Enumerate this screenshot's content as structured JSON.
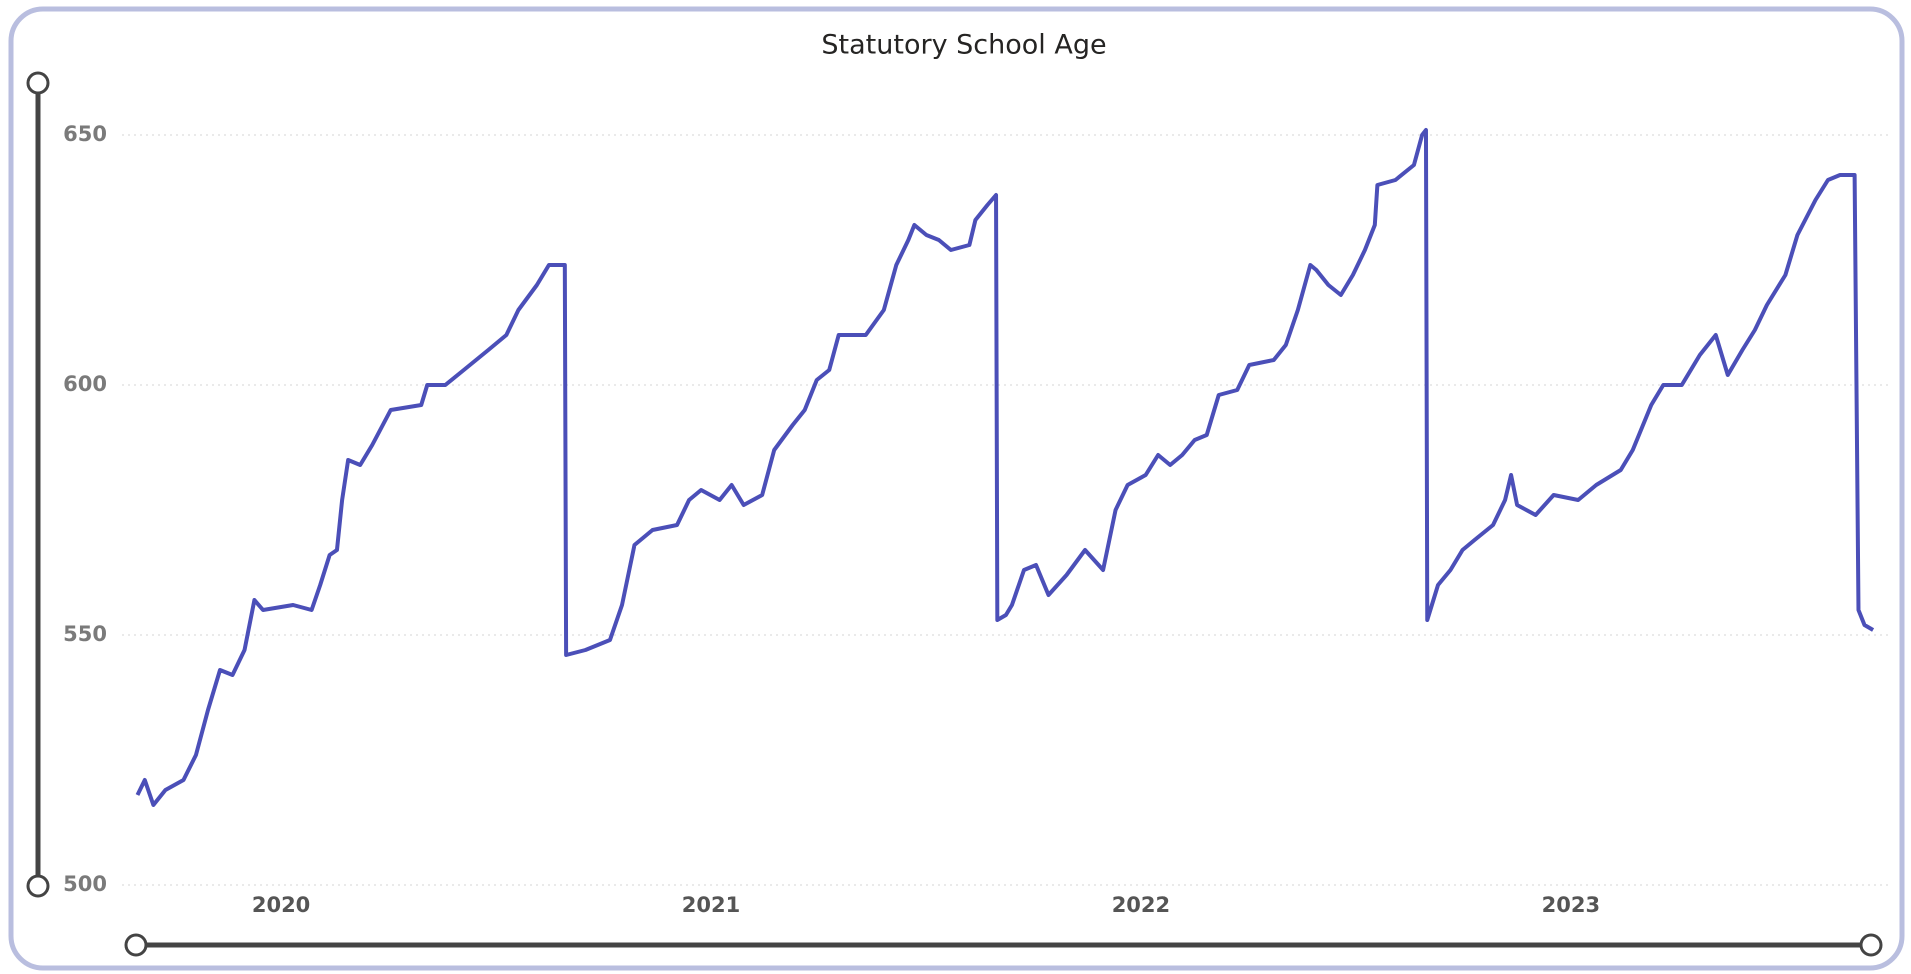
{
  "chart_data": {
    "type": "line",
    "title": "Statutory School Age",
    "color": "#4b4fb8",
    "grid": true,
    "xlim": [
      2019.63,
      2023.74
    ],
    "xticks": [
      2020,
      2021,
      2022,
      2023
    ],
    "ylim": [
      500,
      650
    ],
    "yticks": [
      500,
      550,
      600,
      650
    ],
    "x": [
      2019.666,
      2019.683,
      2019.703,
      2019.731,
      2019.773,
      2019.802,
      2019.83,
      2019.858,
      2019.887,
      2019.915,
      2019.938,
      2019.958,
      2020.028,
      2020.071,
      2020.091,
      2020.113,
      2020.13,
      2020.142,
      2020.156,
      2020.184,
      2020.212,
      2020.255,
      2020.326,
      2020.34,
      2020.382,
      2020.425,
      2020.482,
      2020.524,
      2020.552,
      2020.595,
      2020.623,
      2020.66,
      2020.663,
      2020.708,
      2020.765,
      2020.793,
      2020.822,
      2020.864,
      2020.921,
      2020.949,
      2020.977,
      2021.02,
      2021.048,
      2021.076,
      2021.119,
      2021.147,
      2021.19,
      2021.218,
      2021.246,
      2021.275,
      2021.297,
      2021.36,
      2021.402,
      2021.431,
      2021.459,
      2021.473,
      2021.501,
      2021.53,
      2021.558,
      2021.601,
      2021.615,
      2021.643,
      2021.663,
      2021.666,
      2021.686,
      2021.7,
      2021.728,
      2021.756,
      2021.785,
      2021.827,
      2021.87,
      2021.912,
      2021.941,
      2021.969,
      2022.011,
      2022.04,
      2022.068,
      2022.096,
      2022.125,
      2022.153,
      2022.181,
      2022.224,
      2022.252,
      2022.309,
      2022.337,
      2022.365,
      2022.394,
      2022.408,
      2022.436,
      2022.465,
      2022.493,
      2022.521,
      2022.544,
      2022.55,
      2022.592,
      2022.635,
      2022.654,
      2022.663,
      2022.666,
      2022.691,
      2022.72,
      2022.748,
      2022.776,
      2022.819,
      2022.847,
      2022.861,
      2022.875,
      2022.918,
      2022.96,
      2023.017,
      2023.059,
      2023.116,
      2023.144,
      2023.187,
      2023.215,
      2023.258,
      2023.3,
      2023.337,
      2023.365,
      2023.399,
      2023.428,
      2023.456,
      2023.499,
      2023.527,
      2023.569,
      2023.598,
      2023.626,
      2023.66,
      2023.669,
      2023.683,
      2023.703
    ],
    "values": [
      518,
      521,
      516,
      519,
      521,
      526,
      535,
      543,
      542,
      547,
      557,
      555,
      556,
      555,
      560,
      566,
      567,
      577,
      585,
      584,
      588,
      595,
      596,
      600,
      600,
      603,
      607,
      610,
      615,
      620,
      624,
      624,
      546,
      547,
      549,
      556,
      568,
      571,
      572,
      577,
      579,
      577,
      580,
      576,
      578,
      587,
      592,
      595,
      601,
      603,
      610,
      610,
      615,
      624,
      629,
      632,
      630,
      629,
      627,
      628,
      633,
      636,
      638,
      553,
      554,
      556,
      563,
      564,
      558,
      562,
      567,
      563,
      575,
      580,
      582,
      586,
      584,
      586,
      589,
      590,
      598,
      599,
      604,
      605,
      608,
      615,
      624,
      623,
      620,
      618,
      622,
      627,
      632,
      640,
      641,
      644,
      650,
      651,
      553,
      560,
      563,
      567,
      569,
      572,
      577,
      582,
      576,
      574,
      578,
      577,
      580,
      583,
      587,
      596,
      600,
      600,
      606,
      610,
      602,
      607,
      611,
      616,
      622,
      630,
      637,
      641,
      642,
      642,
      555,
      552,
      551
    ]
  }
}
